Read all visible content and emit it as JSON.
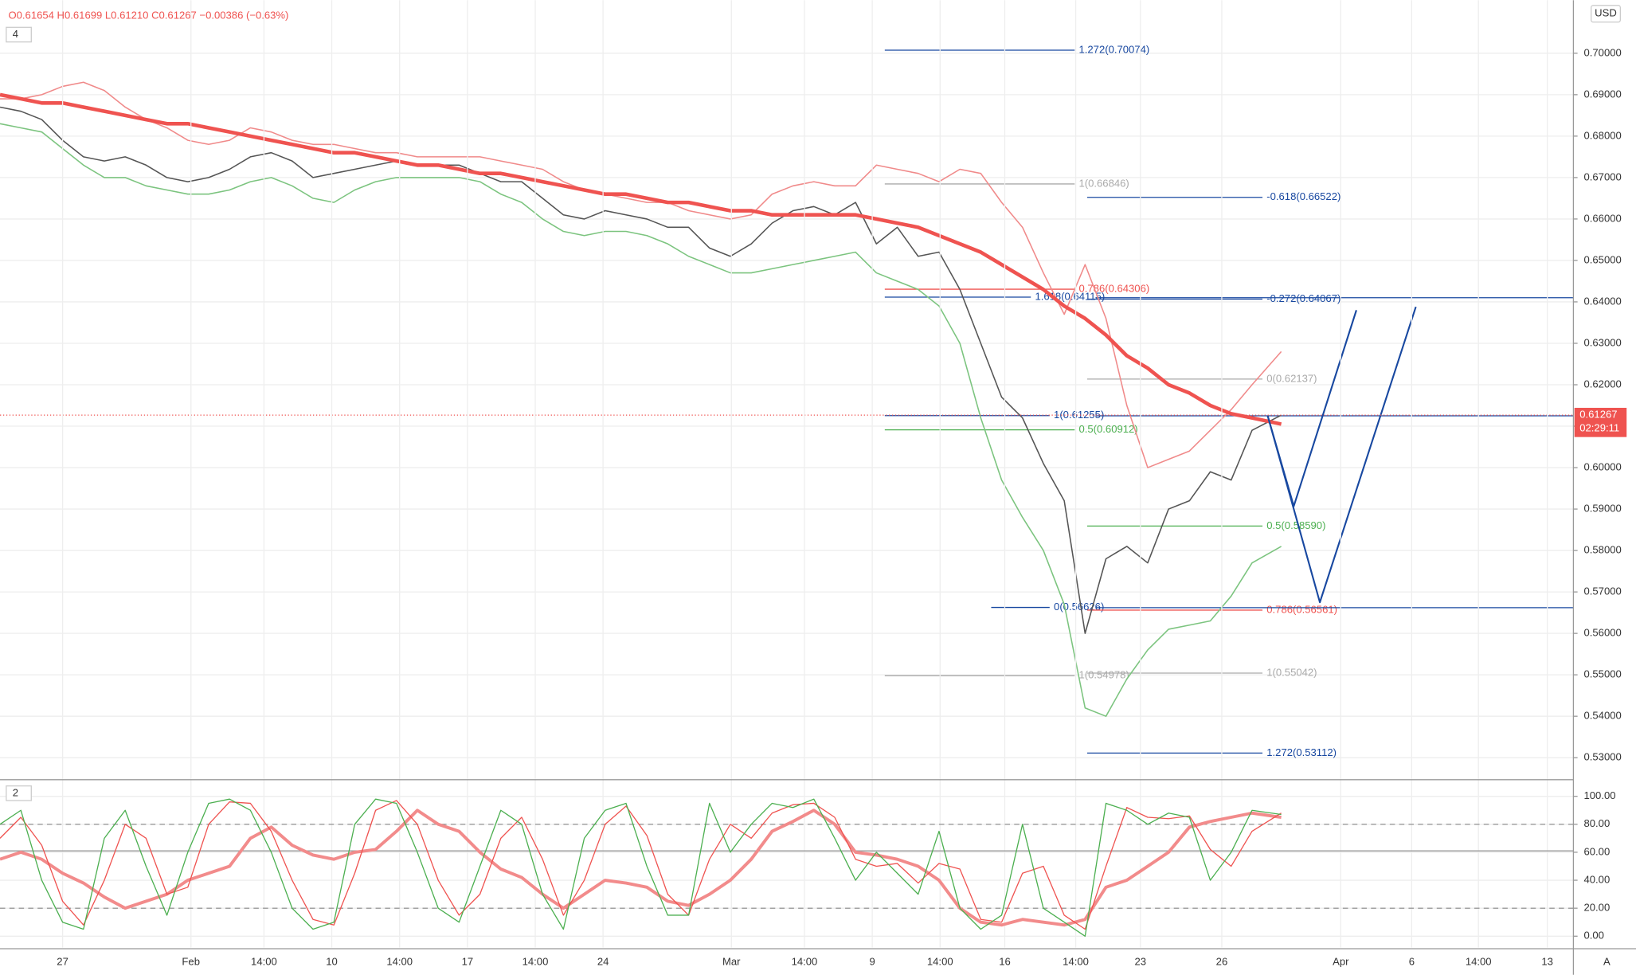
{
  "header": {
    "ohlc": "O0.61654 H0.61699 L0.61210 C0.61267 −0.00386 (−0.63%)",
    "main_indicators": "4",
    "lower_indicators": "2",
    "currency": "USD",
    "auto_scale": "A",
    "countdown": "02:29:11"
  },
  "chart_data": [
    {
      "type": "line",
      "x": [
        0,
        2,
        4,
        6,
        8,
        10,
        12,
        14,
        16,
        18,
        20,
        22,
        24,
        26,
        28,
        30,
        32,
        34,
        36,
        38,
        40,
        42,
        44,
        46,
        48,
        50,
        52,
        54,
        56,
        58,
        60,
        62,
        64,
        66,
        68,
        70,
        72,
        74,
        76,
        78,
        80,
        82,
        84,
        86,
        88,
        90,
        92,
        94,
        96,
        98,
        100,
        102,
        104,
        106,
        108,
        110,
        112,
        114,
        116,
        118,
        120,
        122.8
      ],
      "xlim": [
        0,
        150.8
      ],
      "ylim": [
        0.5252,
        0.7128
      ],
      "yticks": [
        {
          "value": 0.53,
          "label": "0.53000"
        },
        {
          "value": 0.54,
          "label": "0.54000"
        },
        {
          "value": 0.55,
          "label": "0.55000"
        },
        {
          "value": 0.56,
          "label": "0.56000"
        },
        {
          "value": 0.57,
          "label": "0.57000"
        },
        {
          "value": 0.58,
          "label": "0.58000"
        },
        {
          "value": 0.59,
          "label": "0.59000"
        },
        {
          "value": 0.6,
          "label": "0.60000"
        },
        {
          "value": 0.61,
          "label": "0.61000"
        },
        {
          "value": 0.62,
          "label": "0.62000"
        },
        {
          "value": 0.63,
          "label": "0.63000"
        },
        {
          "value": 0.64,
          "label": "0.64000"
        },
        {
          "value": 0.65,
          "label": "0.65000"
        },
        {
          "value": 0.66,
          "label": "0.66000"
        },
        {
          "value": 0.67,
          "label": "0.67000"
        },
        {
          "value": 0.68,
          "label": "0.68000"
        },
        {
          "value": 0.69,
          "label": "0.69000"
        },
        {
          "value": 0.7,
          "label": "0.70000"
        }
      ],
      "grid": true,
      "series": [
        {
          "color": "#f08a8a",
          "width": 1.2,
          "values": [
            0.689,
            0.689,
            0.69,
            0.692,
            0.693,
            0.691,
            0.687,
            0.684,
            0.682,
            0.679,
            0.678,
            0.679,
            0.682,
            0.681,
            0.679,
            0.678,
            0.678,
            0.677,
            0.676,
            0.676,
            0.675,
            0.675,
            0.675,
            0.675,
            0.674,
            0.673,
            0.672,
            0.669,
            0.667,
            0.666,
            0.665,
            0.664,
            0.664,
            0.662,
            0.661,
            0.66,
            0.661,
            0.666,
            0.668,
            0.669,
            0.668,
            0.668,
            0.673,
            0.672,
            0.671,
            0.669,
            0.672,
            0.671,
            0.664,
            0.658,
            0.647,
            0.637,
            0.649,
            0.636,
            0.615,
            0.6,
            0.602,
            0.604,
            0.609,
            0.614,
            0.62,
            0.628
          ]
        },
        {
          "color": "#7cc47f",
          "width": 1.2,
          "values": [
            0.683,
            0.682,
            0.681,
            0.677,
            0.673,
            0.67,
            0.67,
            0.668,
            0.667,
            0.666,
            0.666,
            0.667,
            0.669,
            0.67,
            0.668,
            0.665,
            0.664,
            0.667,
            0.669,
            0.67,
            0.67,
            0.67,
            0.67,
            0.669,
            0.666,
            0.664,
            0.66,
            0.657,
            0.656,
            0.657,
            0.657,
            0.656,
            0.654,
            0.651,
            0.649,
            0.647,
            0.647,
            0.648,
            0.649,
            0.65,
            0.651,
            0.652,
            0.647,
            0.645,
            0.643,
            0.639,
            0.63,
            0.612,
            0.597,
            0.588,
            0.58,
            0.567,
            0.542,
            0.54,
            0.549,
            0.556,
            0.561,
            0.562,
            0.563,
            0.569,
            0.577,
            0.581
          ]
        },
        {
          "color": "#555555",
          "width": 1.2,
          "values": [
            0.687,
            0.686,
            0.684,
            0.679,
            0.675,
            0.674,
            0.675,
            0.673,
            0.67,
            0.669,
            0.67,
            0.672,
            0.675,
            0.676,
            0.674,
            0.67,
            0.671,
            0.672,
            0.673,
            0.674,
            0.673,
            0.673,
            0.673,
            0.671,
            0.669,
            0.669,
            0.665,
            0.661,
            0.66,
            0.662,
            0.661,
            0.66,
            0.658,
            0.658,
            0.653,
            0.651,
            0.654,
            0.659,
            0.662,
            0.663,
            0.661,
            0.664,
            0.654,
            0.658,
            0.651,
            0.652,
            0.643,
            0.63,
            0.617,
            0.612,
            0.601,
            0.592,
            0.56,
            0.578,
            0.581,
            0.577,
            0.59,
            0.592,
            0.599,
            0.597,
            0.609,
            0.61267
          ]
        },
        {
          "color": "#ef5350",
          "width": 3.5,
          "values": [
            0.69,
            0.689,
            0.688,
            0.688,
            0.687,
            0.686,
            0.685,
            0.684,
            0.683,
            0.683,
            0.682,
            0.681,
            0.68,
            0.679,
            0.678,
            0.677,
            0.676,
            0.676,
            0.675,
            0.674,
            0.673,
            0.673,
            0.672,
            0.671,
            0.671,
            0.67,
            0.669,
            0.668,
            0.667,
            0.666,
            0.666,
            0.665,
            0.664,
            0.664,
            0.663,
            0.662,
            0.662,
            0.661,
            0.661,
            0.661,
            0.661,
            0.661,
            0.66,
            0.659,
            0.658,
            0.656,
            0.654,
            0.652,
            0.649,
            0.646,
            0.643,
            0.639,
            0.636,
            0.632,
            0.627,
            0.624,
            0.62,
            0.618,
            0.615,
            0.613,
            0.612,
            0.6105
          ]
        }
      ],
      "levels": [
        {
          "label": "1.272(0.70074)",
          "value": 0.70074,
          "x": [
            84.8,
            103
          ],
          "color": "#1848a0"
        },
        {
          "label": "1(0.66846)",
          "value": 0.66846,
          "x": [
            84.8,
            103
          ],
          "color": "#aaaaaa"
        },
        {
          "label": "-0.618(0.66522)",
          "value": 0.66522,
          "x": [
            104.2,
            121
          ],
          "color": "#1848a0"
        },
        {
          "label": "0.786(0.64306)",
          "value": 0.64306,
          "x": [
            84.8,
            103
          ],
          "color": "#ef5350"
        },
        {
          "label": "1.618(0.64115)",
          "value": 0.64115,
          "x": [
            84.8,
            98.8
          ],
          "color": "#1848a0"
        },
        {
          "label": "-0.272(0.64067)",
          "value": 0.64067,
          "x": [
            104.2,
            121
          ],
          "color": "#1848a0"
        },
        {
          "label": "0(0.62137)",
          "value": 0.62137,
          "x": [
            104.2,
            121
          ],
          "color": "#aaaaaa"
        },
        {
          "label": "1(0.61255)",
          "value": 0.61255,
          "x": [
            84.8,
            100.6
          ],
          "color": "#1848a0"
        },
        {
          "label": "0.5(0.60912)",
          "value": 0.60912,
          "x": [
            84.8,
            103
          ],
          "color": "#4caf50"
        },
        {
          "label": "0.5(0.58590)",
          "value": 0.5859,
          "x": [
            104.2,
            121
          ],
          "color": "#4caf50"
        },
        {
          "label": "0(0.56626)",
          "value": 0.56626,
          "x": [
            95,
            100.6
          ],
          "color": "#1848a0"
        },
        {
          "label": "0.786(0.56561)",
          "value": 0.56561,
          "x": [
            104.2,
            121
          ],
          "color": "#ef5350"
        },
        {
          "label": "1(0.55042)",
          "value": 0.55042,
          "x": [
            104.2,
            121
          ],
          "color": "#aaaaaa"
        },
        {
          "label": "1(0.54978)",
          "value": 0.54978,
          "x": [
            84.8,
            103
          ],
          "color": "#aaaaaa"
        },
        {
          "label": "1.272(0.53112)",
          "value": 0.53112,
          "x": [
            104.2,
            121
          ],
          "color": "#1848a0"
        }
      ],
      "lines": [
        {
          "value": 0.641,
          "x": [
            105,
            150.8
          ],
          "color": "#1848a0"
        },
        {
          "value": 0.6125,
          "x": [
            105,
            150.8
          ],
          "color": "#1848a0"
        },
        {
          "value": 0.5662,
          "x": [
            105,
            150.8
          ],
          "color": "#1848a0"
        }
      ],
      "projections": [
        {
          "x": [
            121.5,
            124,
            130
          ],
          "values": [
            0.6125,
            0.5907,
            0.638
          ],
          "color": "#1848a0"
        },
        {
          "x": [
            121.5,
            126.5,
            135.7
          ],
          "values": [
            0.6125,
            0.5675,
            0.6388
          ],
          "color": "#1848a0"
        }
      ],
      "last_price": {
        "value": 0.61267,
        "color": "#ef5350"
      }
    },
    {
      "type": "line",
      "x": [
        0,
        2,
        4,
        6,
        8,
        10,
        12,
        14,
        16,
        18,
        20,
        22,
        24,
        26,
        28,
        30,
        32,
        34,
        36,
        38,
        40,
        42,
        44,
        46,
        48,
        50,
        52,
        54,
        56,
        58,
        60,
        62,
        64,
        66,
        68,
        70,
        72,
        74,
        76,
        78,
        80,
        82,
        84,
        86,
        88,
        90,
        92,
        94,
        96,
        98,
        100,
        102,
        104,
        106,
        108,
        110,
        112,
        114,
        116,
        118,
        120,
        122.8
      ],
      "xlim": [
        0,
        150.8
      ],
      "xticks": [
        {
          "value": 6,
          "label": "27"
        },
        {
          "value": 18.3,
          "label": "Feb"
        },
        {
          "value": 25.3,
          "label": "14:00"
        },
        {
          "value": 31.8,
          "label": "10"
        },
        {
          "value": 38.3,
          "label": "14:00"
        },
        {
          "value": 44.8,
          "label": "17"
        },
        {
          "value": 51.3,
          "label": "14:00"
        },
        {
          "value": 57.8,
          "label": "24"
        },
        {
          "value": 70.1,
          "label": "Mar"
        },
        {
          "value": 77.1,
          "label": "14:00"
        },
        {
          "value": 83.6,
          "label": "9"
        },
        {
          "value": 90.1,
          "label": "14:00"
        },
        {
          "value": 96.3,
          "label": "16"
        },
        {
          "value": 103.1,
          "label": "14:00"
        },
        {
          "value": 109.3,
          "label": "23"
        },
        {
          "value": 117.1,
          "label": "26"
        },
        {
          "value": 128.5,
          "label": "Apr"
        },
        {
          "value": 135.3,
          "label": "6"
        },
        {
          "value": 141.7,
          "label": "14:00"
        },
        {
          "value": 148.3,
          "label": "13"
        }
      ],
      "ylim": [
        -8.2,
        110.4
      ],
      "yticks": [
        {
          "value": 0,
          "label": "0.00"
        },
        {
          "value": 20,
          "label": "20.00"
        },
        {
          "value": 40,
          "label": "40.00"
        },
        {
          "value": 60,
          "label": "60.00"
        },
        {
          "value": 80,
          "label": "80.00"
        },
        {
          "value": 100,
          "label": "100.00"
        }
      ],
      "grid": true,
      "hlines": [
        {
          "value": 80,
          "style": "dashed"
        },
        {
          "value": 20,
          "style": "dashed"
        },
        {
          "value": 61,
          "style": "solid"
        }
      ],
      "series": [
        {
          "color": "#f28b8b",
          "width": 3,
          "values": [
            55,
            60,
            55,
            45,
            38,
            28,
            20,
            25,
            30,
            40,
            45,
            50,
            70,
            78,
            65,
            58,
            55,
            60,
            62,
            75,
            90,
            80,
            75,
            60,
            48,
            42,
            30,
            20,
            30,
            40,
            38,
            35,
            25,
            22,
            30,
            40,
            55,
            75,
            82,
            90,
            80,
            60,
            58,
            55,
            50,
            40,
            20,
            10,
            8,
            12,
            10,
            8,
            12,
            35,
            40,
            50,
            60,
            78,
            82,
            85,
            88,
            85
          ]
        },
        {
          "color": "#ef5350",
          "width": 1,
          "values": [
            70,
            85,
            65,
            25,
            8,
            40,
            80,
            70,
            30,
            35,
            80,
            96,
            95,
            75,
            40,
            12,
            8,
            45,
            90,
            97,
            80,
            40,
            15,
            30,
            70,
            85,
            55,
            15,
            40,
            80,
            93,
            72,
            30,
            15,
            55,
            80,
            70,
            88,
            94,
            95,
            85,
            55,
            50,
            52,
            38,
            52,
            48,
            12,
            10,
            45,
            50,
            15,
            5,
            50,
            92,
            85,
            84,
            86,
            62,
            50,
            75,
            88
          ]
        },
        {
          "color": "#4caf50",
          "width": 1,
          "values": [
            80,
            90,
            40,
            10,
            5,
            70,
            90,
            50,
            15,
            60,
            95,
            98,
            90,
            60,
            20,
            5,
            10,
            80,
            98,
            95,
            60,
            20,
            10,
            50,
            90,
            80,
            30,
            5,
            70,
            90,
            95,
            50,
            15,
            15,
            95,
            60,
            80,
            95,
            92,
            98,
            70,
            40,
            60,
            45,
            30,
            75,
            20,
            5,
            15,
            80,
            20,
            10,
            0,
            95,
            90,
            80,
            88,
            85,
            40,
            60,
            90,
            87
          ]
        }
      ]
    }
  ]
}
